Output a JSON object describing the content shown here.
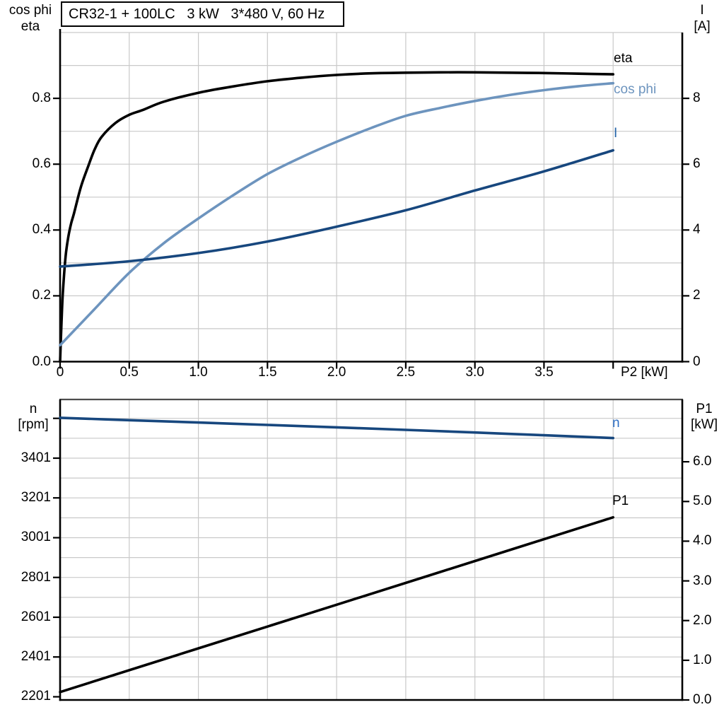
{
  "title_box": {
    "text": "CR32-1 + 100LC   3 kW   3*480 V, 60 Hz"
  },
  "colors": {
    "axis": "#000000",
    "grid": "#c9c9c9",
    "bottom_chart_top_frame": "#4d4d4d",
    "eta_curve": "#000000",
    "cos_phi_curve": "#6d94be",
    "current_curve": "#17477e",
    "speed_curve": "#17477e",
    "p1_curve": "#000000",
    "blue_label": "#2e6fc4"
  },
  "chart_data": [
    {
      "id": "motor-electrical-chart",
      "type": "line",
      "title": "CR32-1 + 100LC   3 kW   3*480 V, 60 Hz",
      "xlabel": "P2 [kW]",
      "x_range": [
        0,
        4.5
      ],
      "grid_on": true,
      "legend_position": "right-inside-labels",
      "x_ticks": [
        {
          "v": 0,
          "l": "0"
        },
        {
          "v": 0.5,
          "l": "0.5"
        },
        {
          "v": 1.0,
          "l": "1.0"
        },
        {
          "v": 1.5,
          "l": "1.5"
        },
        {
          "v": 2.0,
          "l": "2.0"
        },
        {
          "v": 2.5,
          "l": "2.5"
        },
        {
          "v": 3.0,
          "l": "3.0"
        },
        {
          "v": 3.5,
          "l": "3.5"
        },
        {
          "v": 4.0,
          "l": ""
        }
      ],
      "v_grid": [
        0.5,
        1.0,
        1.5,
        2.0,
        2.5,
        3.0,
        3.5,
        4.0
      ],
      "h_grid": [
        0.1,
        0.2,
        0.3,
        0.4,
        0.5,
        0.6,
        0.7,
        0.8,
        0.9,
        1.0
      ],
      "left_axis": {
        "label_lines": [
          "cos phi",
          "eta"
        ],
        "range": [
          0,
          1.0
        ],
        "ticks": [
          {
            "v": 0.0,
            "l": "0.0"
          },
          {
            "v": 0.2,
            "l": "0.2"
          },
          {
            "v": 0.4,
            "l": "0.4"
          },
          {
            "v": 0.6,
            "l": "0.6"
          },
          {
            "v": 0.8,
            "l": "0.8"
          }
        ]
      },
      "right_axis": {
        "label_lines": [
          "I",
          "[A]"
        ],
        "range": [
          0,
          10
        ],
        "ticks": [
          {
            "v": 0,
            "l": "0"
          },
          {
            "v": 2,
            "l": "2"
          },
          {
            "v": 4,
            "l": "4"
          },
          {
            "v": 6,
            "l": "6"
          },
          {
            "v": 8,
            "l": "8"
          }
        ]
      },
      "series": [
        {
          "name": "eta",
          "label": "eta",
          "axis": "left",
          "color": "#000000",
          "label_color": "#000000",
          "x": [
            0,
            0.01,
            0.02,
            0.04,
            0.06,
            0.08,
            0.1,
            0.15,
            0.2,
            0.25,
            0.3,
            0.4,
            0.5,
            0.6,
            0.75,
            1.0,
            1.25,
            1.5,
            1.75,
            2.0,
            2.25,
            2.5,
            2.75,
            3.0,
            3.25,
            3.5,
            3.75,
            4.0
          ],
          "y": [
            0,
            0.12,
            0.21,
            0.32,
            0.38,
            0.42,
            0.45,
            0.53,
            0.59,
            0.645,
            0.683,
            0.725,
            0.75,
            0.765,
            0.79,
            0.817,
            0.836,
            0.852,
            0.863,
            0.871,
            0.876,
            0.878,
            0.879,
            0.879,
            0.878,
            0.877,
            0.875,
            0.873
          ]
        },
        {
          "name": "cos phi",
          "label": "cos phi",
          "axis": "left",
          "color": "#6d94be",
          "label_color": "#6d94be",
          "x": [
            0,
            0.25,
            0.5,
            0.75,
            1.0,
            1.25,
            1.5,
            1.75,
            2.0,
            2.25,
            2.5,
            2.75,
            3.0,
            3.25,
            3.5,
            3.75,
            4.0
          ],
          "y": [
            0.05,
            0.16,
            0.27,
            0.36,
            0.435,
            0.505,
            0.57,
            0.622,
            0.668,
            0.71,
            0.747,
            0.771,
            0.792,
            0.81,
            0.825,
            0.837,
            0.846
          ]
        },
        {
          "name": "I",
          "label": "I",
          "axis": "right",
          "color": "#17477e",
          "label_color": "#2464a8",
          "x": [
            0,
            0.5,
            1.0,
            1.5,
            2.0,
            2.5,
            3.0,
            3.5,
            4.0
          ],
          "y": [
            2.89,
            3.05,
            3.3,
            3.65,
            4.1,
            4.6,
            5.2,
            5.78,
            6.42
          ]
        }
      ]
    },
    {
      "id": "motor-speed-power-chart",
      "type": "line",
      "xlabel": "",
      "x_range": [
        0,
        4.5
      ],
      "grid_on": true,
      "top_frame_dark": true,
      "x_ticks": [],
      "v_grid": [
        0.5,
        1.0,
        1.5,
        2.0,
        2.5,
        3.0,
        3.5,
        4.0
      ],
      "h_grid": [
        2301,
        2401,
        2501,
        2601,
        2701,
        2801,
        2901,
        3001,
        3101,
        3201,
        3301,
        3401,
        3501,
        3601
      ],
      "left_axis": {
        "label_lines": [
          "n",
          "[rpm]"
        ],
        "range": [
          2185,
          3696
        ],
        "ticks": [
          {
            "v": 3601,
            "l": ""
          },
          {
            "v": 3401,
            "l": "3401"
          },
          {
            "v": 3201,
            "l": "3201"
          },
          {
            "v": 3001,
            "l": "3001"
          },
          {
            "v": 2801,
            "l": "2801"
          },
          {
            "v": 2601,
            "l": "2601"
          },
          {
            "v": 2401,
            "l": "2401"
          },
          {
            "v": 2201,
            "l": "2201"
          }
        ]
      },
      "right_axis": {
        "label_lines": [
          "P1",
          "[kW]"
        ],
        "range": [
          0,
          7.57
        ],
        "ticks": [
          {
            "v": 0.0,
            "l": "0.0"
          },
          {
            "v": 1.0,
            "l": "1.0"
          },
          {
            "v": 2.0,
            "l": "2.0"
          },
          {
            "v": 3.0,
            "l": "3.0"
          },
          {
            "v": 4.0,
            "l": "4.0"
          },
          {
            "v": 5.0,
            "l": "5.0"
          },
          {
            "v": 6.0,
            "l": "6.0"
          }
        ]
      },
      "series": [
        {
          "name": "n",
          "label": "n",
          "axis": "left",
          "color": "#17477e",
          "label_color": "#2e6fc4",
          "x": [
            0,
            0.5,
            1.0,
            1.5,
            2.0,
            2.5,
            3.0,
            3.5,
            4.0
          ],
          "y": [
            3604,
            3592,
            3580,
            3568,
            3556,
            3543,
            3530,
            3516,
            3502
          ]
        },
        {
          "name": "P1",
          "label": "P1",
          "axis": "right",
          "color": "#000000",
          "label_color": "#000000",
          "x": [
            0,
            1.0,
            2.0,
            3.0,
            4.0
          ],
          "y": [
            0.2,
            1.3,
            2.4,
            3.5,
            4.6
          ]
        }
      ]
    }
  ]
}
